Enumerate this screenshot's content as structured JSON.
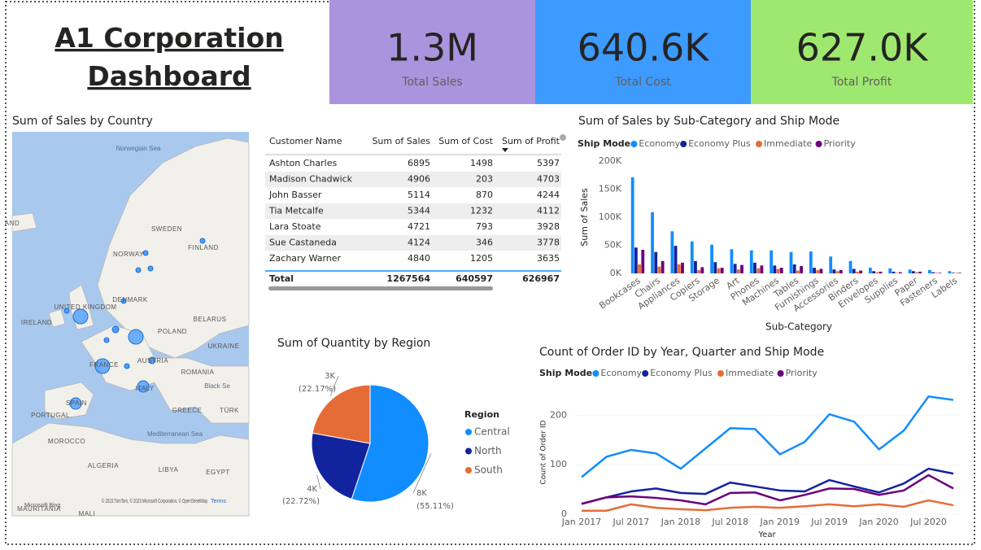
{
  "header": {
    "title": "A1 Corporation Dashboard"
  },
  "kpis": [
    {
      "value": "1.3M",
      "label": "Total Sales",
      "color": "#ab94de"
    },
    {
      "value": "640.6K",
      "label": "Total Cost",
      "color": "#3d9bff"
    },
    {
      "value": "627.0K",
      "label": "Total Profit",
      "color": "#9fe870"
    }
  ],
  "map": {
    "title": "Sum of Sales by Country",
    "labels": [
      "Norwegian Sea",
      "AND",
      "SWEDEN",
      "FINLAND",
      "NORWAY",
      "UNITED KINGDOM",
      "DENMARK",
      "IRELAND",
      "POLAND",
      "BELARUS",
      "UKRAINE",
      "FRANCE",
      "AUSTRIA",
      "ROMANIA",
      "Black Se",
      "ITALY",
      "SPAIN",
      "PORTUGAL",
      "GREECE",
      "TÜRK",
      "MOROCCO",
      "Mediterranean Sea",
      "ALGERIA",
      "LIBYA",
      "EGYPT",
      "MAURITANIA",
      "MALI"
    ],
    "attribution": "© 2023 TomTom, © 2023 Microsoft Corporation, © OpenStreetMap",
    "terms": "Terms",
    "brand": "Microsoft Bing"
  },
  "table": {
    "columns": [
      "Customer Name",
      "Sum of Sales",
      "Sum of Cost",
      "Sum of Profit"
    ],
    "rows": [
      [
        "Ashton Charles",
        6895,
        1498,
        5397
      ],
      [
        "Madison Chadwick",
        4906,
        203,
        4703
      ],
      [
        "John Basser",
        5114,
        870,
        4244
      ],
      [
        "Tia Metcalfe",
        5344,
        1232,
        4112
      ],
      [
        "Lara Stoate",
        4721,
        793,
        3928
      ],
      [
        "Sue Castaneda",
        4124,
        346,
        3778
      ],
      [
        "Zachary Warner",
        4840,
        1205,
        3635
      ]
    ],
    "total": [
      "Total",
      1267564,
      640597,
      626967
    ]
  },
  "chart_data": [
    {
      "type": "bar",
      "title": "Sum of Sales by Sub-Category and Ship Mode",
      "legend_title": "Ship Mode",
      "x_label": "Sub-Category",
      "y_label": "Sum of Sales",
      "categories": [
        "Bookcases",
        "Chairs",
        "Appliances",
        "Copiers",
        "Storage",
        "Art",
        "Phones",
        "Machines",
        "Tables",
        "Furnishings",
        "Accessories",
        "Binders",
        "Envelopes",
        "Supplies",
        "Paper",
        "Fasteners",
        "Labels"
      ],
      "series": [
        {
          "name": "Economy",
          "color": "#118dff",
          "values": [
            171000,
            109000,
            75000,
            57000,
            51000,
            43000,
            41000,
            41000,
            38000,
            39000,
            30000,
            22000,
            10000,
            9000,
            7000,
            6000,
            4000
          ]
        },
        {
          "name": "Economy Plus",
          "color": "#12239e",
          "values": [
            46000,
            38000,
            49000,
            22000,
            20000,
            17000,
            19000,
            14000,
            16000,
            10000,
            7000,
            8000,
            4000,
            3000,
            4000,
            2000,
            1000
          ]
        },
        {
          "name": "Immediate",
          "color": "#e66c37",
          "values": [
            16000,
            12000,
            16000,
            6000,
            9000,
            7000,
            9000,
            8000,
            5000,
            6000,
            4000,
            3000,
            2000,
            1000,
            2000,
            1000,
            1000
          ]
        },
        {
          "name": "Priority",
          "color": "#6b007b",
          "values": [
            42000,
            22000,
            19000,
            11000,
            10000,
            15000,
            14000,
            10000,
            13000,
            8000,
            6000,
            5000,
            3000,
            2000,
            3000,
            1000,
            1000
          ]
        }
      ],
      "ylim": [
        0,
        200000
      ],
      "yticks": [
        {
          "value": 0,
          "label": "0K"
        },
        {
          "value": 50000,
          "label": "50K"
        },
        {
          "value": 100000,
          "label": "100K"
        },
        {
          "value": 150000,
          "label": "150K"
        },
        {
          "value": 200000,
          "label": "200K"
        }
      ],
      "grid": false
    },
    {
      "type": "pie",
      "title": "Sum of Quantity by Region",
      "legend_title": "Region",
      "categories": [
        "Central",
        "North",
        "South"
      ],
      "values": [
        55.11,
        22.72,
        22.17
      ],
      "value_labels": [
        "(55.11%)",
        "(22.72%)",
        "(22.17%)"
      ],
      "quantity_labels": [
        "8K",
        "4K",
        "3K"
      ],
      "colors": [
        "#118dff",
        "#12239e",
        "#e66c37"
      ]
    },
    {
      "type": "line",
      "title": "Count of Order ID by Year, Quarter and Ship Mode",
      "legend_title": "Ship Mode",
      "x_label": "Year",
      "y_label": "Count of Order ID",
      "categories": [
        "Jan 2017",
        null,
        "Jul 2017",
        null,
        "Jan 2018",
        null,
        "Jul 2018",
        null,
        "Jan 2019",
        null,
        "Jul 2019",
        null,
        "Jan 2020",
        null,
        "Jul 2020",
        null
      ],
      "series": [
        {
          "name": "Economy",
          "color": "#118dff",
          "values": [
            75,
            116,
            130,
            123,
            92,
            133,
            174,
            172,
            121,
            146,
            202,
            187,
            131,
            169,
            238,
            231
          ]
        },
        {
          "name": "Economy Plus",
          "color": "#12239e",
          "values": [
            21,
            34,
            46,
            52,
            43,
            41,
            64,
            56,
            48,
            46,
            69,
            56,
            44,
            62,
            92,
            82
          ]
        },
        {
          "name": "Immediate",
          "color": "#e66c37",
          "values": [
            7,
            7,
            20,
            13,
            10,
            8,
            13,
            15,
            13,
            16,
            20,
            16,
            20,
            15,
            28,
            18
          ]
        },
        {
          "name": "Priority",
          "color": "#6b007b",
          "values": [
            21,
            34,
            36,
            33,
            28,
            20,
            43,
            44,
            28,
            39,
            52,
            51,
            39,
            48,
            79,
            52
          ]
        }
      ],
      "ylim": [
        0,
        250
      ],
      "yticks": [
        0,
        100,
        200
      ],
      "grid": true
    }
  ]
}
